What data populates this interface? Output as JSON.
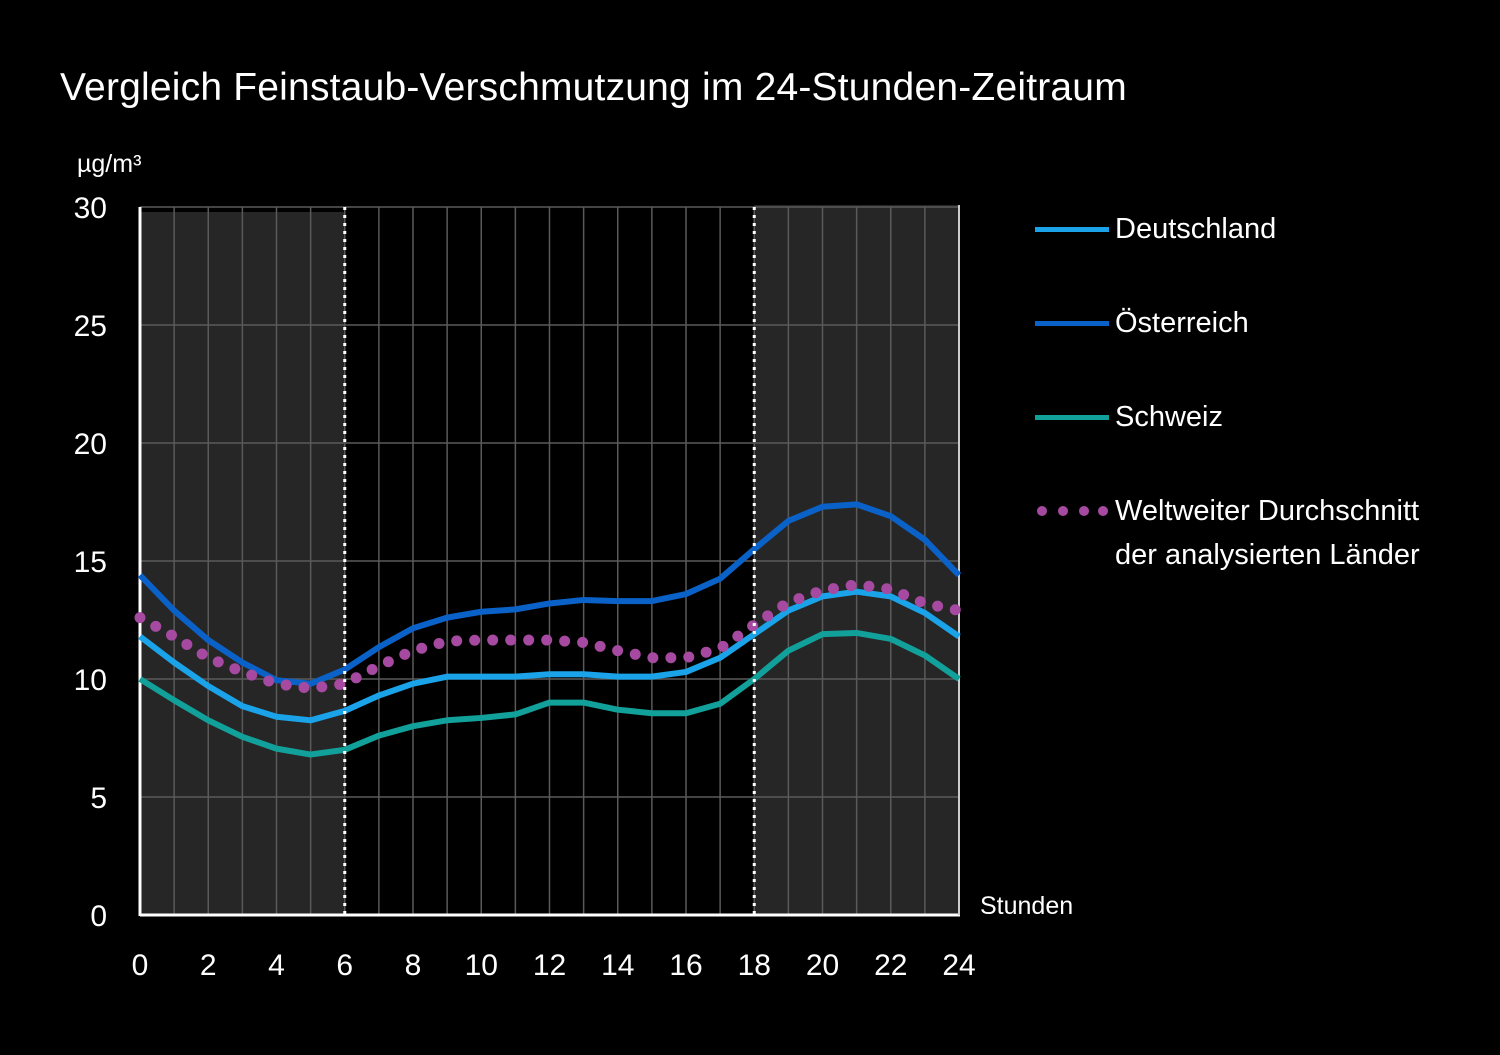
{
  "chart_data": {
    "type": "line",
    "title": "Vergleich Feinstaub-Verschmutzung im 24-Stunden-Zeitraum",
    "ylabel": "µg/m³",
    "xlabel": "Stunden",
    "xlim": [
      0,
      24
    ],
    "ylim": [
      0,
      30
    ],
    "x": [
      0,
      1,
      2,
      3,
      4,
      5,
      6,
      7,
      8,
      9,
      10,
      11,
      12,
      13,
      14,
      15,
      16,
      17,
      18,
      19,
      20,
      21,
      22,
      23,
      24
    ],
    "x_ticks": [
      0,
      2,
      4,
      6,
      8,
      10,
      12,
      14,
      16,
      18,
      20,
      22,
      24
    ],
    "y_ticks": [
      0,
      5,
      10,
      15,
      20,
      25,
      30
    ],
    "grid": true,
    "shaded_ranges": [
      [
        0,
        6
      ],
      [
        18,
        24
      ]
    ],
    "marker_lines": [
      6,
      18
    ],
    "legend_position": "right",
    "series": [
      {
        "name": "Deutschland",
        "style": "solid",
        "color": "#1aa3e8",
        "values": [
          11.8,
          10.7,
          9.7,
          8.85,
          8.4,
          8.25,
          8.65,
          9.3,
          9.8,
          10.1,
          10.1,
          10.1,
          10.2,
          10.2,
          10.1,
          10.1,
          10.3,
          10.9,
          11.9,
          12.9,
          13.5,
          13.7,
          13.5,
          12.8,
          11.8
        ]
      },
      {
        "name": "Österreich",
        "style": "solid",
        "color": "#0a62c9",
        "values": [
          14.4,
          12.9,
          11.65,
          10.7,
          9.95,
          9.8,
          10.4,
          11.35,
          12.15,
          12.6,
          12.85,
          12.95,
          13.2,
          13.35,
          13.3,
          13.3,
          13.6,
          14.25,
          15.5,
          16.7,
          17.3,
          17.4,
          16.9,
          15.9,
          14.4
        ]
      },
      {
        "name": "Schweiz",
        "style": "solid",
        "color": "#12a09a",
        "values": [
          10.0,
          9.1,
          8.25,
          7.55,
          7.05,
          6.8,
          7.0,
          7.6,
          8.0,
          8.25,
          8.35,
          8.5,
          9.0,
          9.0,
          8.7,
          8.55,
          8.55,
          8.95,
          10.0,
          11.2,
          11.9,
          11.95,
          11.7,
          11.0,
          10.0
        ]
      },
      {
        "name": "Weltweiter Durchschnitt der analysierten Länder",
        "name_line1": "Weltweiter Durchschnitt",
        "name_line2": "der analysierten Länder",
        "style": "dotted",
        "color": "#a54aa0",
        "values": [
          12.6,
          11.8,
          10.9,
          10.3,
          9.8,
          9.6,
          9.8,
          10.55,
          11.2,
          11.6,
          11.65,
          11.65,
          11.65,
          11.55,
          11.2,
          10.9,
          10.9,
          11.3,
          12.3,
          13.25,
          13.75,
          14.0,
          13.8,
          13.2,
          12.9
        ]
      }
    ]
  }
}
